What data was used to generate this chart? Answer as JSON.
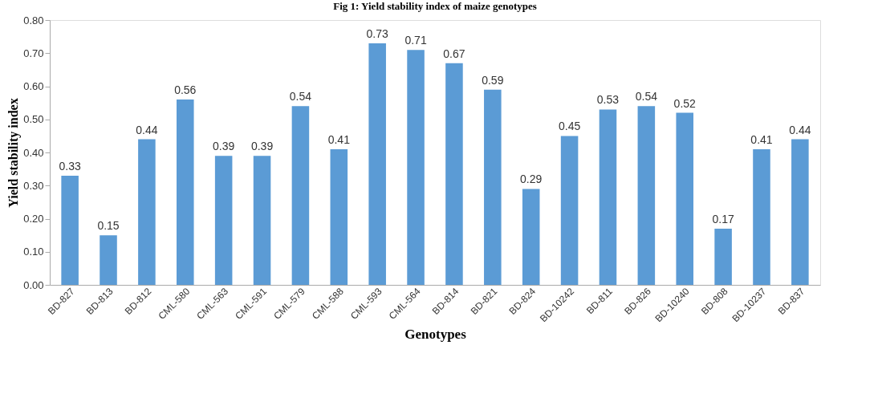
{
  "chart_data": {
    "type": "bar",
    "title": "Fig 1: Yield stability index of maize genotypes",
    "xlabel": "Genotypes",
    "ylabel": "Yield  stability index",
    "categories": [
      "BD-827",
      "BD-813",
      "BD-812",
      "CML-580",
      "CML-563",
      "CML-591",
      "CML-579",
      "CML-588",
      "CML-593",
      "CML-564",
      "BD-814",
      "BD-821",
      "BD-824",
      "BD-10242",
      "BD-811",
      "BD-826",
      "BD-10240",
      "BD-808",
      "BD-10237",
      "BD-837"
    ],
    "values": [
      0.33,
      0.15,
      0.44,
      0.56,
      0.39,
      0.39,
      0.54,
      0.41,
      0.73,
      0.71,
      0.67,
      0.59,
      0.29,
      0.45,
      0.53,
      0.54,
      0.52,
      0.17,
      0.41,
      0.44
    ],
    "color": "#5b9bd5",
    "ylim": [
      0,
      0.8
    ],
    "yticks": [
      {
        "value": 0,
        "label": "0.00"
      },
      {
        "value": 0.1,
        "label": "0.10"
      },
      {
        "value": 0.2,
        "label": "0.20"
      },
      {
        "value": 0.3,
        "label": "0.30"
      },
      {
        "value": 0.4,
        "label": "0.40"
      },
      {
        "value": 0.5,
        "label": "0.50"
      },
      {
        "value": 0.6,
        "label": "0.60"
      },
      {
        "value": 0.7,
        "label": "0.70"
      },
      {
        "value": 0.8,
        "label": "0.80"
      }
    ],
    "grid": false,
    "data_labels": true
  }
}
